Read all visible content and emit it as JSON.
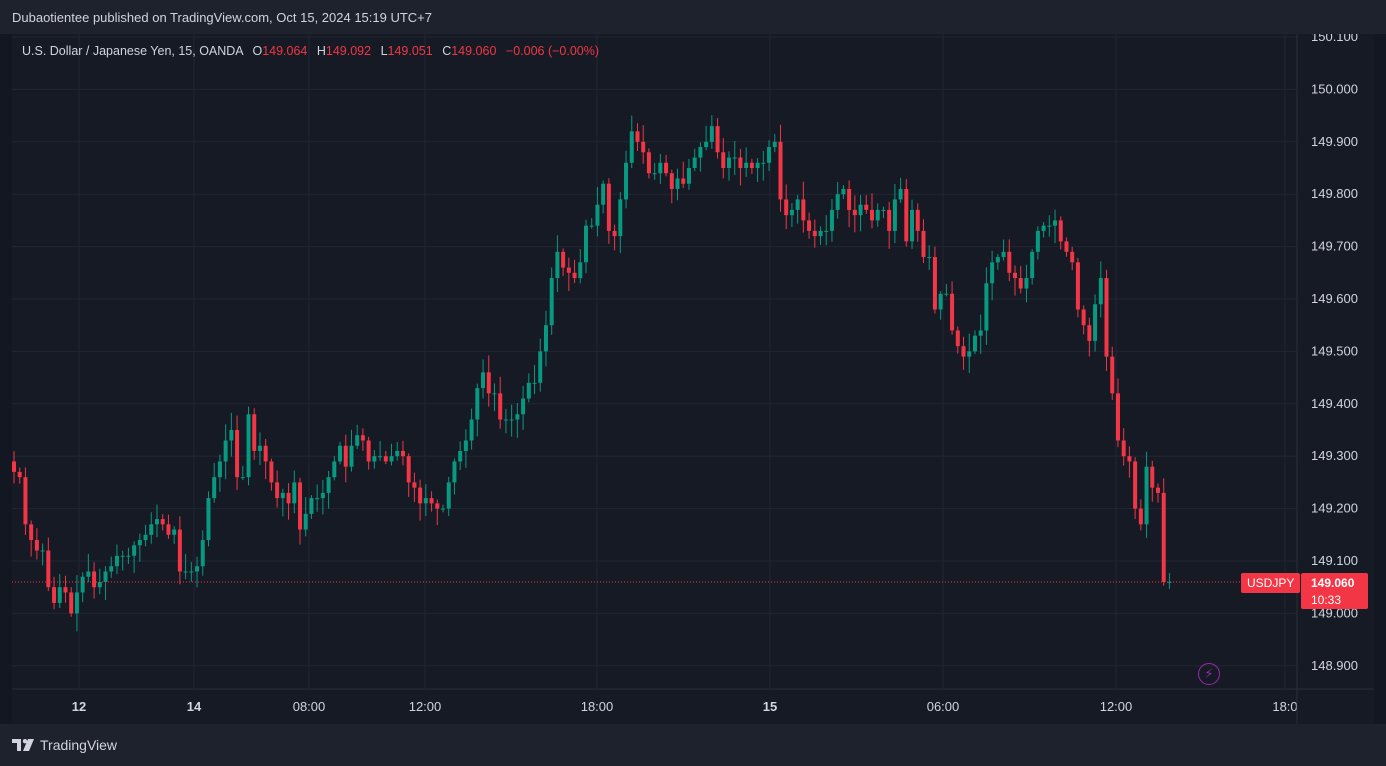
{
  "header": {
    "publisher_text": "Dubaotientee published on TradingView.com, Oct 15, 2024 15:19 UTC+7"
  },
  "legend": {
    "instrument": "U.S. Dollar / Japanese Yen, 15, OANDA",
    "open_label": "O",
    "open_value": "149.064",
    "high_label": "H",
    "high_value": "149.092",
    "low_label": "L",
    "low_value": "149.051",
    "close_label": "C",
    "close_value": "149.060",
    "change": "−0.006 (−0.00%)"
  },
  "price_tag": {
    "symbol": "USDJPY",
    "price": "149.060",
    "countdown": "10:33"
  },
  "footer": {
    "brand": "TradingView"
  },
  "colors": {
    "up": "#089981",
    "down": "#f23645",
    "grid": "#232632",
    "background": "#161a25",
    "axis_text": "#d1d4dc"
  },
  "chart_data": {
    "type": "candlestick",
    "interval": "15",
    "current_price": 149.06,
    "ylim": [
      148.85,
      150.1
    ],
    "y_ticks": [
      "150.100",
      "150.000",
      "149.900",
      "149.800",
      "149.700",
      "149.600",
      "149.500",
      "149.400",
      "149.300",
      "149.200",
      "149.100",
      "149.000",
      "148.900"
    ],
    "x_ticks": [
      "12",
      "14",
      "08:00",
      "12:00",
      "18:00",
      "15",
      "06:00",
      "12:00",
      "18:0"
    ],
    "x_tick_bold": [
      true,
      true,
      false,
      false,
      false,
      true,
      false,
      false,
      false
    ],
    "candles_close": [
      149.27,
      149.26,
      149.17,
      149.14,
      149.12,
      149.12,
      149.05,
      149.02,
      149.05,
      149.04,
      149.0,
      149.04,
      149.07,
      149.08,
      149.05,
      149.06,
      149.08,
      149.09,
      149.11,
      149.11,
      149.11,
      149.13,
      149.14,
      149.15,
      149.17,
      149.18,
      149.17,
      149.15,
      149.16,
      149.08,
      149.08,
      149.08,
      149.09,
      149.14,
      149.22,
      149.26,
      149.29,
      149.33,
      149.35,
      149.26,
      149.26,
      149.38,
      149.31,
      149.32,
      149.29,
      149.25,
      149.22,
      149.23,
      149.21,
      149.25,
      149.16,
      149.19,
      149.22,
      149.22,
      149.23,
      149.26,
      149.29,
      149.32,
      149.28,
      149.32,
      149.34,
      149.33,
      149.29,
      149.3,
      149.3,
      149.29,
      149.3,
      149.31,
      149.3,
      149.25,
      149.24,
      149.21,
      149.22,
      149.21,
      149.2,
      149.2,
      149.25,
      149.29,
      149.31,
      149.33,
      149.37,
      149.43,
      149.46,
      149.42,
      149.42,
      149.37,
      149.37,
      149.37,
      149.38,
      149.41,
      149.44,
      149.44,
      149.5,
      149.55,
      149.64,
      149.69,
      149.66,
      149.65,
      149.64,
      149.67,
      149.74,
      149.74,
      149.78,
      149.82,
      149.73,
      149.72,
      149.79,
      149.86,
      149.92,
      149.9,
      149.88,
      149.84,
      149.84,
      149.86,
      149.84,
      149.81,
      149.83,
      149.82,
      149.85,
      149.87,
      149.89,
      149.9,
      149.93,
      149.88,
      149.85,
      149.87,
      149.87,
      149.85,
      149.86,
      149.85,
      149.86,
      149.86,
      149.89,
      149.9,
      149.79,
      149.76,
      149.77,
      149.79,
      149.75,
      149.73,
      149.72,
      149.73,
      149.73,
      149.77,
      149.8,
      149.81,
      149.77,
      149.76,
      149.78,
      149.77,
      149.75,
      149.77,
      149.77,
      149.73,
      149.79,
      149.81,
      149.71,
      149.77,
      149.73,
      149.68,
      149.68,
      149.58,
      149.61,
      149.61,
      149.54,
      149.51,
      149.49,
      149.5,
      149.53,
      149.54,
      149.63,
      149.67,
      149.68,
      149.69,
      149.65,
      149.64,
      149.62,
      149.64,
      149.69,
      149.73,
      149.74,
      149.74,
      149.75,
      149.71,
      149.69,
      149.67,
      149.58,
      149.55,
      149.52,
      149.59,
      149.64,
      149.49,
      149.42,
      149.33,
      149.3,
      149.29,
      149.2,
      149.17,
      149.28,
      149.24,
      149.23,
      149.06,
      149.06
    ]
  }
}
